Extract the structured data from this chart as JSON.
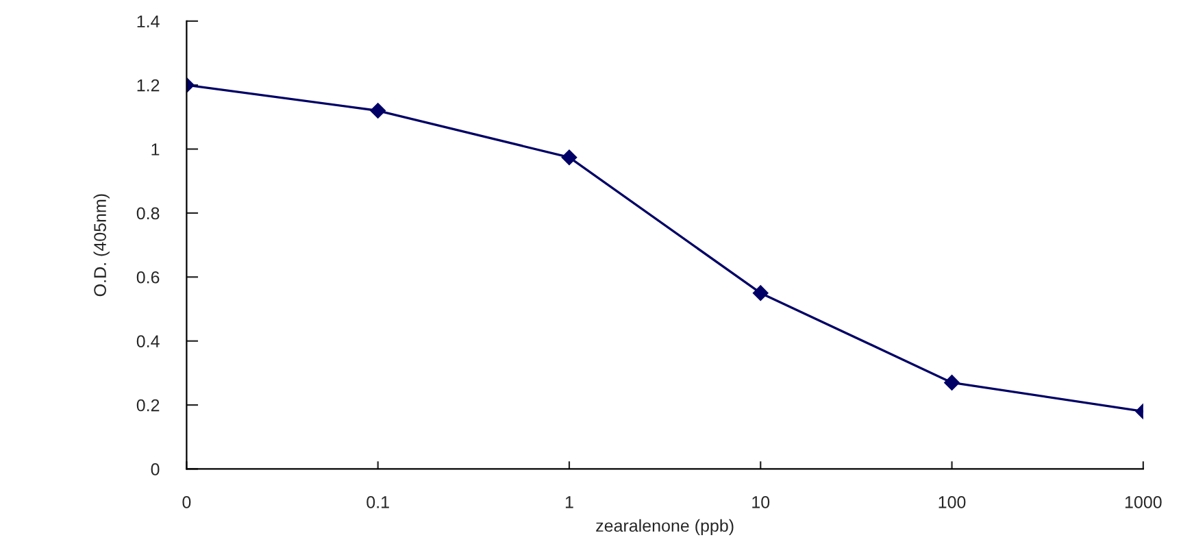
{
  "chart_data": {
    "type": "line",
    "xlabel": "zearalenone (ppb)",
    "ylabel": "O.D. (405nm)",
    "categories": [
      "0",
      "0.1",
      "1",
      "10",
      "100",
      "1000"
    ],
    "series": [
      {
        "color": "#000066",
        "values": [
          1.2,
          1.12,
          0.974,
          0.55,
          0.27,
          0.18
        ]
      }
    ],
    "ylim": [
      0,
      1.4
    ],
    "yticks": [
      0,
      0.2,
      0.4,
      0.6,
      0.8,
      1,
      1.2,
      1.4
    ],
    "marker": "diamond",
    "line_style": "solid",
    "grid": false,
    "legend": false
  }
}
